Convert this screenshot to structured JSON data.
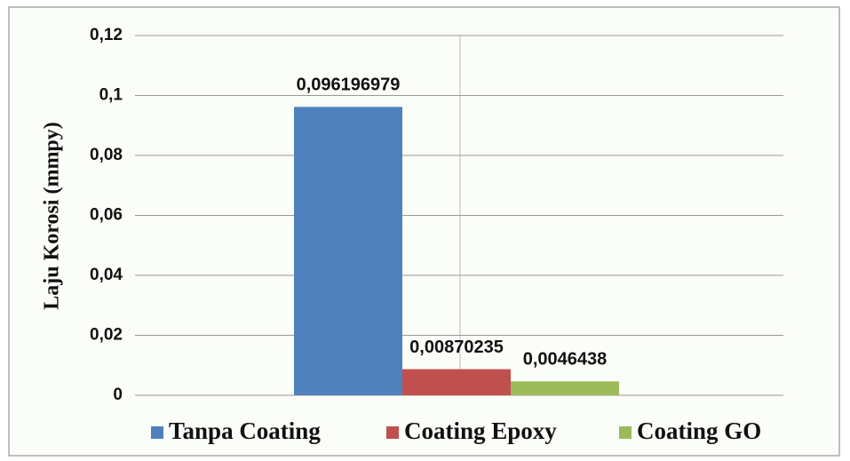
{
  "chart_data": {
    "type": "bar",
    "y_label": "Laju Korosi (mmpy)",
    "categories": [
      null
    ],
    "series": [
      {
        "name": "Tanpa Coating",
        "color": "#4f81bd",
        "values": [
          0.096196979
        ],
        "value_labels": [
          "0,096196979"
        ]
      },
      {
        "name": "Coating Epoxy",
        "color": "#c0504d",
        "values": [
          0.00870235
        ],
        "value_labels": [
          "0,00870235"
        ]
      },
      {
        "name": "Coating GO",
        "color": "#9bbb59",
        "values": [
          0.0046438
        ],
        "value_labels": [
          "0,0046438"
        ]
      }
    ],
    "ylim": [
      0,
      0.12
    ],
    "yticks": [
      0,
      {
        "value": 0.02,
        "label": "0,02"
      },
      {
        "value": 0.04,
        "label": "0,04"
      },
      {
        "value": 0.06,
        "label": "0,06"
      },
      {
        "value": 0.08,
        "label": "0,08"
      },
      {
        "value": 0.1,
        "label": "0,1"
      },
      {
        "value": 0.12,
        "label": "0,12"
      }
    ],
    "grid": true
  }
}
